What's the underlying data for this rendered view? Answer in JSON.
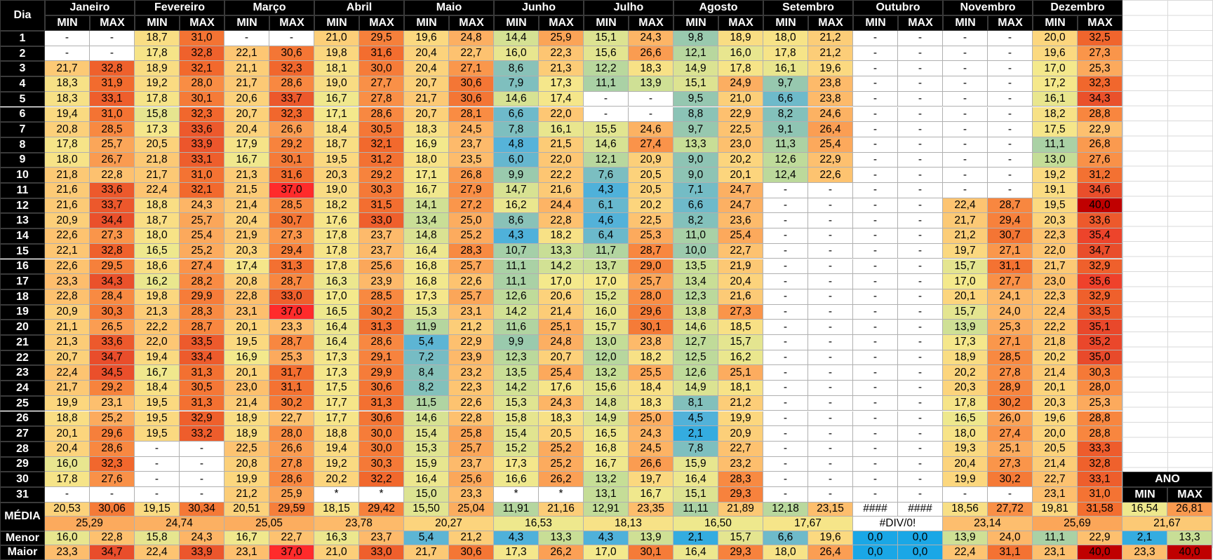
{
  "headers": {
    "dia": "Dia",
    "min": "MIN",
    "max": "MAX",
    "ano": "ANO",
    "months": [
      "Janeiro",
      "Fevereiro",
      "Março",
      "Abril",
      "Maio",
      "Junho",
      "Julho",
      "Agosto",
      "Setembro",
      "Outubro",
      "Novembro",
      "Dezembro"
    ]
  },
  "days": [
    "1",
    "2",
    "3",
    "4",
    "5",
    "6",
    "7",
    "8",
    "9",
    "10",
    "11",
    "12",
    "13",
    "14",
    "15",
    "16",
    "17",
    "18",
    "19",
    "20",
    "21",
    "22",
    "23",
    "24",
    "25",
    "26",
    "27",
    "28",
    "29",
    "30",
    "31"
  ],
  "rows": [
    [
      "-",
      "-",
      "18,7",
      "31,0",
      "-",
      "-",
      "21,0",
      "29,5",
      "19,6",
      "24,8",
      "14,4",
      "25,9",
      "15,1",
      "24,3",
      "9,8",
      "18,9",
      "18,0",
      "21,2",
      "-",
      "-",
      "-",
      "-",
      "20,0",
      "32,5"
    ],
    [
      "-",
      "-",
      "17,8",
      "32,8",
      "22,1",
      "30,6",
      "19,8",
      "31,6",
      "20,4",
      "22,7",
      "16,0",
      "22,3",
      "15,6",
      "26,6",
      "12,1",
      "16,0",
      "17,8",
      "21,2",
      "-",
      "-",
      "-",
      "-",
      "19,6",
      "27,3"
    ],
    [
      "21,7",
      "32,8",
      "18,9",
      "32,1",
      "21,1",
      "32,3",
      "18,1",
      "30,0",
      "20,4",
      "27,1",
      "8,6",
      "21,3",
      "12,2",
      "18,3",
      "14,9",
      "17,8",
      "16,1",
      "19,6",
      "-",
      "-",
      "-",
      "-",
      "17,0",
      "25,3"
    ],
    [
      "18,3",
      "31,9",
      "19,2",
      "28,0",
      "21,7",
      "28,6",
      "19,0",
      "27,7",
      "20,7",
      "30,6",
      "7,9",
      "17,3",
      "11,1",
      "13,9",
      "15,1",
      "24,9",
      "9,7",
      "23,8",
      "-",
      "-",
      "-",
      "-",
      "17,2",
      "32,3"
    ],
    [
      "18,3",
      "33,1",
      "17,8",
      "30,1",
      "20,6",
      "33,7",
      "16,7",
      "27,8",
      "21,7",
      "30,6",
      "14,6",
      "17,4",
      "-",
      "-",
      "9,5",
      "21,0",
      "6,6",
      "23,8",
      "-",
      "-",
      "-",
      "-",
      "16,1",
      "34,3"
    ],
    [
      "19,4",
      "31,0",
      "15,8",
      "32,3",
      "20,7",
      "32,3",
      "17,1",
      "28,6",
      "20,7",
      "28,1",
      "6,6",
      "22,0",
      "-",
      "-",
      "8,8",
      "22,9",
      "8,2",
      "24,6",
      "-",
      "-",
      "-",
      "-",
      "18,2",
      "28,8"
    ],
    [
      "20,8",
      "28,5",
      "17,3",
      "33,6",
      "20,4",
      "26,6",
      "18,4",
      "30,5",
      "18,3",
      "24,5",
      "7,8",
      "16,1",
      "15,5",
      "24,6",
      "9,7",
      "22,5",
      "9,1",
      "26,4",
      "-",
      "-",
      "-",
      "-",
      "17,5",
      "22,9"
    ],
    [
      "17,8",
      "25,7",
      "20,5",
      "33,9",
      "17,9",
      "29,2",
      "18,7",
      "32,1",
      "16,9",
      "23,7",
      "4,8",
      "21,5",
      "14,6",
      "27,4",
      "13,3",
      "23,0",
      "11,3",
      "25,4",
      "-",
      "-",
      "-",
      "-",
      "11,1",
      "26,8"
    ],
    [
      "18,0",
      "26,7",
      "21,8",
      "33,1",
      "16,7",
      "30,1",
      "19,5",
      "31,2",
      "18,0",
      "23,5",
      "6,0",
      "22,0",
      "12,1",
      "20,9",
      "9,0",
      "20,2",
      "12,6",
      "22,9",
      "-",
      "-",
      "-",
      "-",
      "13,0",
      "27,6"
    ],
    [
      "21,8",
      "22,8",
      "21,7",
      "31,0",
      "21,3",
      "31,6",
      "20,3",
      "29,2",
      "17,1",
      "26,8",
      "9,9",
      "22,2",
      "7,6",
      "20,5",
      "9,0",
      "20,1",
      "12,4",
      "22,6",
      "-",
      "-",
      "-",
      "-",
      "19,2",
      "31,2"
    ],
    [
      "21,6",
      "33,6",
      "22,4",
      "32,1",
      "21,5",
      "37,0",
      "19,0",
      "30,3",
      "16,7",
      "27,9",
      "14,7",
      "21,6",
      "4,3",
      "20,5",
      "7,1",
      "24,7",
      "-",
      "-",
      "-",
      "-",
      "-",
      "-",
      "19,1",
      "34,6"
    ],
    [
      "21,6",
      "33,7",
      "18,8",
      "24,3",
      "21,4",
      "28,5",
      "18,2",
      "31,5",
      "14,1",
      "27,2",
      "16,2",
      "24,4",
      "6,1",
      "20,2",
      "6,6",
      "24,7",
      "-",
      "-",
      "-",
      "-",
      "22,4",
      "28,7",
      "19,5",
      "40,0"
    ],
    [
      "20,9",
      "34,4",
      "18,7",
      "25,7",
      "20,4",
      "30,7",
      "17,6",
      "33,0",
      "13,4",
      "25,0",
      "8,6",
      "22,8",
      "4,6",
      "22,5",
      "8,2",
      "23,6",
      "-",
      "-",
      "-",
      "-",
      "21,7",
      "29,4",
      "20,3",
      "33,6"
    ],
    [
      "22,6",
      "27,3",
      "18,0",
      "25,4",
      "21,9",
      "27,3",
      "17,8",
      "23,7",
      "14,8",
      "25,2",
      "4,3",
      "18,2",
      "6,4",
      "25,3",
      "11,0",
      "25,4",
      "-",
      "-",
      "-",
      "-",
      "21,2",
      "30,7",
      "22,3",
      "35,4"
    ],
    [
      "22,1",
      "32,8",
      "16,5",
      "25,2",
      "20,3",
      "29,4",
      "17,8",
      "23,7",
      "16,4",
      "28,3",
      "10,7",
      "13,3",
      "11,7",
      "28,7",
      "10,0",
      "22,7",
      "-",
      "-",
      "-",
      "-",
      "19,7",
      "27,1",
      "22,0",
      "34,7"
    ],
    [
      "22,6",
      "29,5",
      "18,6",
      "27,4",
      "17,4",
      "31,3",
      "17,8",
      "25,6",
      "16,8",
      "25,7",
      "11,1",
      "14,2",
      "13,7",
      "29,0",
      "13,5",
      "21,9",
      "-",
      "-",
      "-",
      "-",
      "15,7",
      "31,1",
      "21,7",
      "32,9"
    ],
    [
      "23,3",
      "34,3",
      "16,2",
      "28,2",
      "20,8",
      "28,7",
      "16,3",
      "23,9",
      "16,8",
      "22,6",
      "11,1",
      "17,0",
      "17,0",
      "25,7",
      "13,4",
      "20,4",
      "-",
      "-",
      "-",
      "-",
      "17,0",
      "27,7",
      "23,0",
      "35,6"
    ],
    [
      "22,8",
      "28,4",
      "19,8",
      "29,9",
      "22,8",
      "33,0",
      "17,0",
      "28,5",
      "17,3",
      "25,7",
      "12,6",
      "20,6",
      "15,2",
      "28,0",
      "12,3",
      "21,6",
      "-",
      "-",
      "-",
      "-",
      "20,1",
      "24,1",
      "22,3",
      "32,9"
    ],
    [
      "20,9",
      "30,3",
      "21,3",
      "28,3",
      "23,1",
      "37,0",
      "16,5",
      "30,2",
      "15,3",
      "23,1",
      "14,2",
      "21,4",
      "16,0",
      "29,6",
      "13,8",
      "27,3",
      "-",
      "-",
      "-",
      "-",
      "15,7",
      "24,0",
      "22,4",
      "33,5"
    ],
    [
      "21,1",
      "26,5",
      "22,2",
      "28,7",
      "20,1",
      "23,3",
      "16,4",
      "31,3",
      "11,9",
      "21,2",
      "11,6",
      "25,1",
      "15,7",
      "30,1",
      "14,6",
      "18,5",
      "-",
      "-",
      "-",
      "-",
      "13,9",
      "25,3",
      "22,2",
      "35,1"
    ],
    [
      "21,3",
      "33,6",
      "22,0",
      "33,5",
      "19,5",
      "28,7",
      "16,4",
      "28,6",
      "5,4",
      "22,9",
      "9,9",
      "24,8",
      "13,0",
      "23,8",
      "12,7",
      "15,7",
      "-",
      "-",
      "-",
      "-",
      "17,3",
      "27,1",
      "21,8",
      "35,2"
    ],
    [
      "20,7",
      "34,7",
      "19,4",
      "33,4",
      "16,9",
      "25,3",
      "17,3",
      "29,1",
      "7,2",
      "23,9",
      "12,3",
      "20,7",
      "12,0",
      "18,2",
      "12,5",
      "16,2",
      "-",
      "-",
      "-",
      "-",
      "18,9",
      "28,5",
      "20,2",
      "35,0"
    ],
    [
      "22,4",
      "34,5",
      "16,7",
      "31,3",
      "20,1",
      "31,7",
      "17,3",
      "29,9",
      "8,4",
      "23,2",
      "13,5",
      "25,4",
      "13,2",
      "25,5",
      "12,6",
      "25,1",
      "-",
      "-",
      "-",
      "-",
      "20,2",
      "27,8",
      "21,4",
      "30,3"
    ],
    [
      "21,7",
      "29,2",
      "18,4",
      "30,5",
      "23,0",
      "31,1",
      "17,5",
      "30,6",
      "8,2",
      "22,3",
      "14,2",
      "17,6",
      "15,6",
      "18,4",
      "14,9",
      "18,1",
      "-",
      "-",
      "-",
      "-",
      "20,3",
      "28,9",
      "20,1",
      "28,0"
    ],
    [
      "19,9",
      "23,1",
      "19,5",
      "31,3",
      "21,4",
      "30,2",
      "17,7",
      "31,3",
      "11,5",
      "22,6",
      "15,3",
      "24,3",
      "14,8",
      "18,3",
      "8,1",
      "21,2",
      "-",
      "-",
      "-",
      "-",
      "17,8",
      "30,2",
      "20,3",
      "25,3"
    ],
    [
      "18,8",
      "25,2",
      "19,5",
      "32,9",
      "18,9",
      "22,7",
      "17,7",
      "30,6",
      "14,6",
      "22,8",
      "15,8",
      "18,3",
      "14,9",
      "25,0",
      "4,5",
      "19,9",
      "-",
      "-",
      "-",
      "-",
      "16,5",
      "26,0",
      "19,6",
      "28,8"
    ],
    [
      "20,1",
      "29,6",
      "19,5",
      "33,2",
      "18,9",
      "28,0",
      "18,8",
      "30,0",
      "15,4",
      "25,8",
      "15,4",
      "20,5",
      "16,5",
      "24,3",
      "2,1",
      "20,9",
      "-",
      "-",
      "-",
      "-",
      "18,0",
      "27,4",
      "20,0",
      "28,8"
    ],
    [
      "20,4",
      "28,6",
      "-",
      "-",
      "22,5",
      "26,6",
      "19,4",
      "30,0",
      "15,3",
      "25,7",
      "15,2",
      "25,2",
      "16,8",
      "24,5",
      "7,8",
      "22,7",
      "-",
      "-",
      "-",
      "-",
      "19,3",
      "25,1",
      "20,5",
      "33,3"
    ],
    [
      "16,0",
      "32,3",
      "-",
      "-",
      "20,8",
      "27,8",
      "19,2",
      "30,3",
      "15,9",
      "23,7",
      "17,3",
      "25,2",
      "16,7",
      "26,6",
      "15,9",
      "23,2",
      "-",
      "-",
      "-",
      "-",
      "20,4",
      "27,3",
      "21,4",
      "32,8"
    ],
    [
      "17,8",
      "27,6",
      "-",
      "-",
      "19,9",
      "28,6",
      "20,2",
      "32,2",
      "16,4",
      "25,6",
      "16,6",
      "26,2",
      "13,2",
      "19,7",
      "16,4",
      "28,3",
      "-",
      "-",
      "-",
      "-",
      "19,9",
      "30,2",
      "22,7",
      "33,1"
    ],
    [
      "-",
      "-",
      "-",
      "-",
      "21,2",
      "25,9",
      "*",
      "*",
      "15,0",
      "23,3",
      "*",
      "*",
      "13,1",
      "16,7",
      "15,1",
      "29,3",
      "-",
      "-",
      "-",
      "-",
      "-",
      "-",
      "23,1",
      "31,0"
    ]
  ],
  "summary": {
    "media_label": "MÉDIA",
    "menor_label": "Menor",
    "maior_label": "Maior",
    "media": [
      "20,53",
      "30,06",
      "19,15",
      "30,34",
      "20,51",
      "29,59",
      "18,15",
      "29,42",
      "15,50",
      "25,04",
      "11,91",
      "21,16",
      "12,91",
      "23,35",
      "11,11",
      "21,89",
      "12,18",
      "23,15",
      "####",
      "####",
      "18,56",
      "27,72",
      "19,81",
      "31,58"
    ],
    "media_combined": [
      "25,29",
      "24,74",
      "25,05",
      "23,78",
      "20,27",
      "16,53",
      "18,13",
      "16,50",
      "17,67",
      "#DIV/0!",
      "23,14",
      "25,69"
    ],
    "menor": [
      "16,0",
      "22,8",
      "15,8",
      "24,3",
      "16,7",
      "22,7",
      "16,3",
      "23,7",
      "5,4",
      "21,2",
      "4,3",
      "13,3",
      "4,3",
      "13,9",
      "2,1",
      "15,7",
      "6,6",
      "19,6",
      "0,0",
      "0,0",
      "13,9",
      "24,0",
      "11,1",
      "22,9"
    ],
    "maior": [
      "23,3",
      "34,7",
      "22,4",
      "33,9",
      "23,1",
      "37,0",
      "21,0",
      "33,0",
      "21,7",
      "30,6",
      "17,3",
      "26,2",
      "17,0",
      "30,1",
      "16,4",
      "29,3",
      "18,0",
      "26,4",
      "0,0",
      "0,0",
      "22,4",
      "31,1",
      "23,1",
      "40,0"
    ],
    "ano": {
      "media": [
        "16,54",
        "26,81"
      ],
      "combined": "21,67",
      "menor": [
        "2,1",
        "13,3"
      ],
      "maior": [
        "23,3",
        "40,0"
      ]
    }
  }
}
